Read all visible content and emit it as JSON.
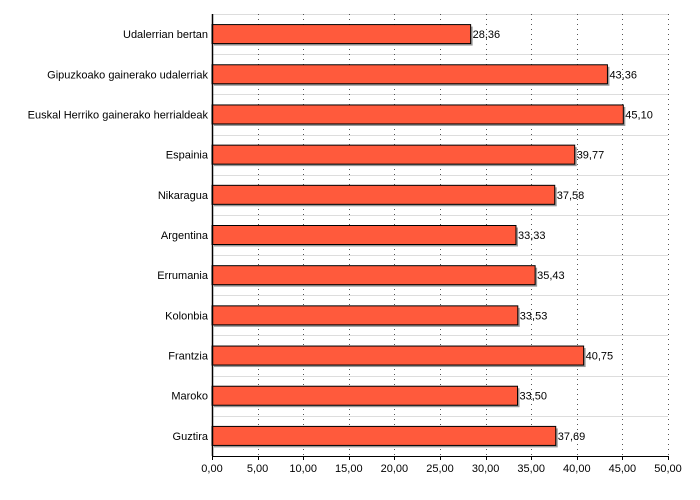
{
  "chart_data": {
    "type": "bar",
    "orientation": "horizontal",
    "categories": [
      "Udalerrian bertan",
      "Gipuzkoako gainerako udalerriak",
      "Euskal Herriko gainerako herrialdeak",
      "Espainia",
      "Nikaragua",
      "Argentina",
      "Errumania",
      "Kolonbia",
      "Frantzia",
      "Maroko",
      "Guztira"
    ],
    "values": [
      28.36,
      43.36,
      45.1,
      39.77,
      37.58,
      33.33,
      35.43,
      33.53,
      40.75,
      33.5,
      37.69
    ],
    "value_labels": [
      "28,36",
      "43,36",
      "45,10",
      "39,77",
      "37,58",
      "33,33",
      "35,43",
      "33,53",
      "40,75",
      "33,50",
      "37,69"
    ],
    "xlim": [
      0,
      50
    ],
    "x_ticks": [
      0,
      5,
      10,
      15,
      20,
      25,
      30,
      35,
      40,
      45,
      50
    ],
    "x_tick_labels": [
      "0,00",
      "5,00",
      "10,00",
      "15,00",
      "20,00",
      "25,00",
      "30,00",
      "35,00",
      "40,00",
      "45,00",
      "50,00"
    ],
    "bar_color": "#ff5a3c",
    "bar_edge_color": "#000000",
    "grid": true,
    "legend": false
  }
}
